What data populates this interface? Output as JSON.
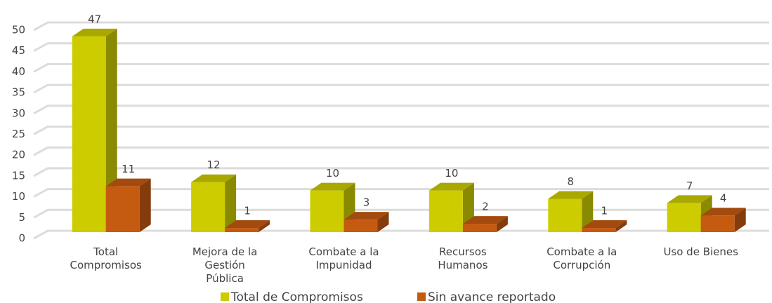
{
  "chart_data": {
    "type": "bar3d",
    "categories": [
      "Total Compromisos",
      "Mejora de la Gestión Pública",
      "Combate a la Impunidad",
      "Recursos Humanos",
      "Combate a la Corrupción",
      "Uso de Bienes"
    ],
    "series": [
      {
        "name": "Total de Compromisos",
        "color": "#cccc00",
        "side": "#8a8a00",
        "top": "#a8a800",
        "values": [
          47,
          12,
          10,
          10,
          8,
          7
        ]
      },
      {
        "name": "Sin avance reportado",
        "color": "#c55a11",
        "side": "#843c0c",
        "top": "#a34a0e",
        "values": [
          11,
          1,
          3,
          2,
          1,
          4
        ]
      }
    ],
    "ylim": [
      0,
      50
    ],
    "yticks": [
      0,
      5,
      10,
      15,
      20,
      25,
      30,
      35,
      40,
      45,
      50
    ],
    "grid": true,
    "legend": "bottom"
  }
}
